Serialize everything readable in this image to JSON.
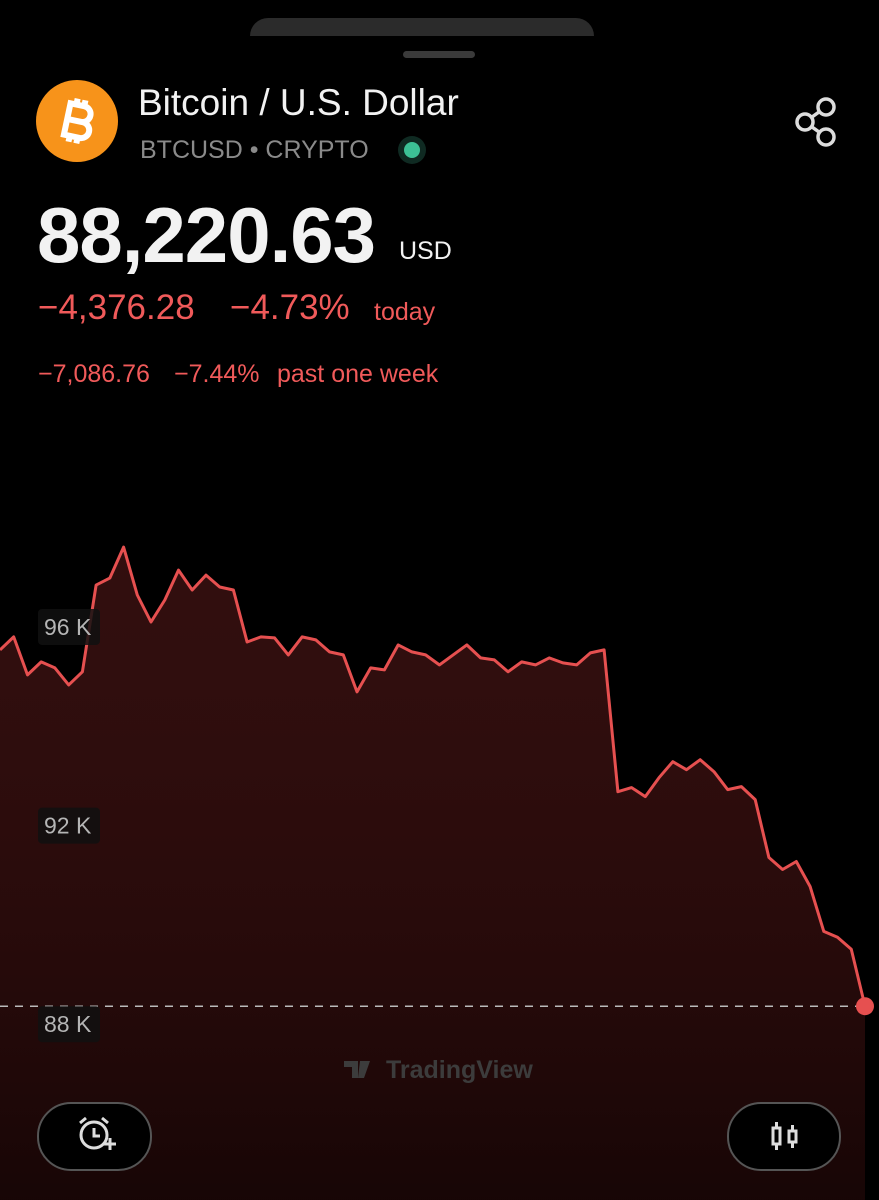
{
  "header": {
    "title": "Bitcoin / U.S. Dollar",
    "symbol": "BTCUSD • CRYPTO",
    "price": "88,220.63",
    "currency": "USD",
    "change_today": "−4,376.28",
    "change_today_pct": "−4.73%",
    "today_label": "today",
    "change_week": "−7,086.76",
    "change_week_pct": "−7.44%",
    "week_label": "past one week"
  },
  "chart_data": {
    "type": "line",
    "color": "#e65050",
    "watermark": "TradingView",
    "values": [
      95538,
      95799,
      95035,
      95296,
      95176,
      94834,
      95096,
      96844,
      96985,
      97608,
      96643,
      96100,
      96543,
      97146,
      96744,
      97045,
      96804,
      96744,
      95698,
      95799,
      95779,
      95437,
      95799,
      95739,
      95497,
      95437,
      94693,
      95176,
      95136,
      95638,
      95497,
      95437,
      95236,
      95437,
      95638,
      95377,
      95337,
      95096,
      95296,
      95236,
      95377,
      95276,
      95236,
      95477,
      95538,
      92683,
      92764,
      92583,
      92965,
      93286,
      93126,
      93327,
      93085,
      92724,
      92784,
      92523,
      91357,
      91116,
      91276,
      90774,
      89869,
      89749,
      89508,
      88362
    ],
    "ylim": [
      86000,
      99000
    ],
    "yticks": [
      {
        "value": 88000,
        "label": "88 K"
      },
      {
        "value": 92000,
        "label": "92 K"
      },
      {
        "value": 96000,
        "label": "96 K"
      }
    ]
  }
}
